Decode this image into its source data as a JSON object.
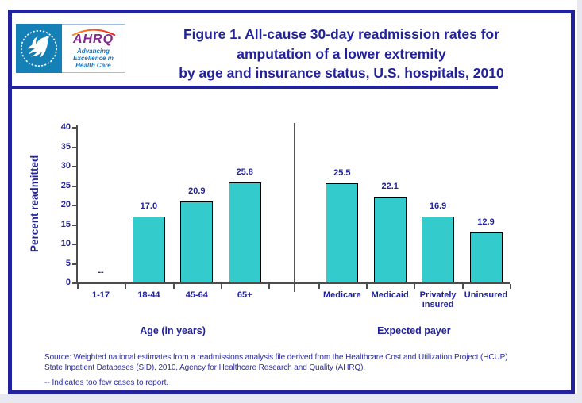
{
  "page": {
    "background": "#e8e8f0",
    "slide_background": "#ffffff",
    "frame_border_color": "#22229b"
  },
  "colors": {
    "navy_text": "#22229b",
    "bar_fill": "#34cbcc",
    "bar_border": "#000000",
    "axis": "#4d4d4d",
    "divider": "#555555",
    "logo_teal": "#1480b6",
    "ahrq_purple": "#82288e",
    "tagline_blue": "#1b75bc",
    "arc_orange": "#f7941d",
    "arc_red": "#ed1c24"
  },
  "header": {
    "logo": {
      "seal_name": "hhs-eagle-seal",
      "ahrq": "AHRQ",
      "tagline_lines": [
        "Advancing",
        "Excellence in",
        "Health Care"
      ]
    },
    "title_lines": [
      "Figure 1. All-cause 30-day readmission rates for",
      "amputation of a lower extremity",
      "by age and insurance status, U.S. hospitals, 2010"
    ]
  },
  "chart_data": {
    "type": "bar",
    "title": "Figure 1. All-cause 30-day readmission rates for amputation of a lower extremity by age and insurance status, U.S. hospitals, 2010",
    "ylabel": "Percent readmitted",
    "xlabel": "",
    "ylim": [
      0,
      40
    ],
    "yticks": [
      0,
      5,
      10,
      15,
      20,
      25,
      30,
      35,
      40
    ],
    "grid": false,
    "legend": false,
    "bar_color": "#34cbcc",
    "null_marker": "--",
    "groups": [
      {
        "label": "Age (in years)",
        "categories": [
          "1-17",
          "18-44",
          "45-64",
          "65+"
        ],
        "values": [
          null,
          17.0,
          20.9,
          25.8
        ],
        "value_labels": [
          "--",
          "17.0",
          "20.9",
          "25.8"
        ]
      },
      {
        "label": "Expected payer",
        "categories": [
          "Medicare",
          "Medicaid",
          "Privately insured",
          "Uninsured"
        ],
        "values": [
          25.5,
          22.1,
          16.9,
          12.9
        ],
        "value_labels": [
          "25.5",
          "22.1",
          "16.9",
          "12.9"
        ]
      }
    ]
  },
  "footer": {
    "source_lines": [
      "Source: Weighted national estimates from a readmissions analysis file derived from the Healthcare Cost and Utilization Project (HCUP)",
      "State Inpatient Databases (SID), 2010, Agency for Healthcare Research and Quality (AHRQ)."
    ],
    "note": "-- Indicates too few cases to report."
  }
}
